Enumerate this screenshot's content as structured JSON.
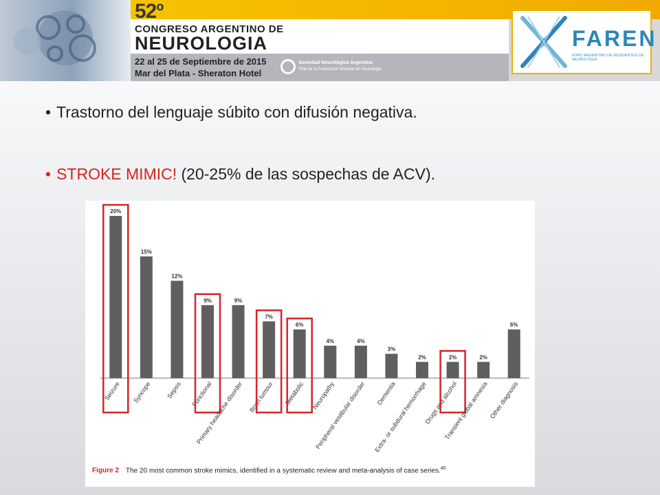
{
  "header": {
    "congress_number": "52º",
    "congress_line1": "CONGRESO ARGENTINO DE",
    "congress_line2": "NEUROLOGIA",
    "dates": "22 al 25 de Septiembre de 2015",
    "place": "Mar del Plata - Sheraton Hotel",
    "society_name": "Sociedad Neurológica Argentina",
    "society_sub": "Filial de la Federación Mundial de Neurología",
    "faren_word": "FAREN",
    "faren_sub": "FORO ARGENTINO DE RESIDENTES DE NEUROLOGIA",
    "colors": {
      "gold": "#f4b800",
      "faren_blue": "#2e86b8"
    }
  },
  "bullets": {
    "b1": "Trastorno del lenguaje súbito con difusión negativa.",
    "b2_red": "STROKE MIMIC!",
    "b2_rest": " (20-25% de las sospechas de ACV)."
  },
  "chart_data": {
    "type": "bar",
    "categories": [
      "Seizure",
      "Syncope",
      "Sepsis",
      "Functional",
      "Primary headache disorder",
      "Brain tumour",
      "Metabolic",
      "Neuropathy",
      "Peripheral vestibular disorder",
      "Dementia",
      "Extra- or subdural hemorrhage",
      "Drugs and alcohol",
      "Transient global amnesia",
      "Other diagnosis"
    ],
    "values": [
      20,
      15,
      12,
      9,
      9,
      7,
      6,
      4,
      4,
      3,
      2,
      2,
      2,
      6
    ],
    "labels": [
      "20%",
      "15%",
      "12%",
      "9%",
      "9%",
      "7%",
      "6%",
      "4%",
      "4%",
      "3%",
      "2%",
      "2%",
      "2%",
      "6%"
    ],
    "ylim": [
      0,
      20
    ],
    "highlighted": [
      "Seizure",
      "Functional",
      "Brain tumour",
      "Metabolic",
      "Drugs and alcohol"
    ],
    "bar_color": "#5f5f5f",
    "highlight_color": "#d8232a",
    "caption_label": "Figure 2",
    "caption_text": "The 20 most common stroke mimics, identified in a systematic review and meta-analysis of case series.",
    "caption_ref": "40"
  }
}
